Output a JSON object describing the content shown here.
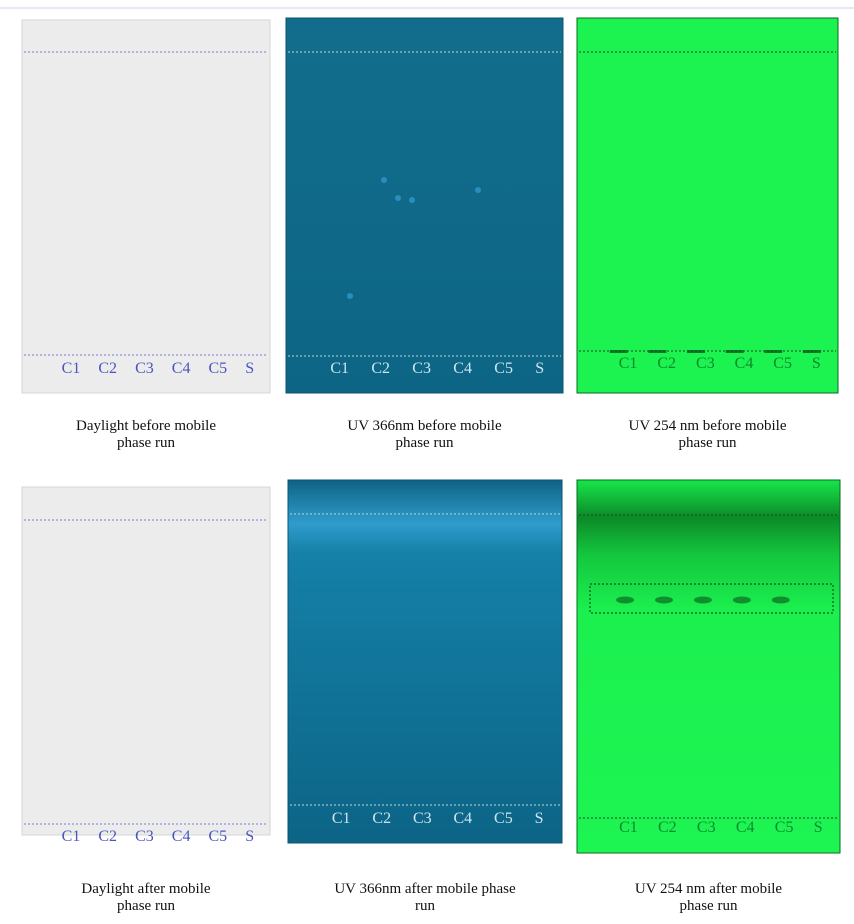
{
  "lanes": [
    "C1",
    "C2",
    "C3",
    "C4",
    "C5",
    "S"
  ],
  "panels": [
    {
      "caption": [
        "Daylight before mobile",
        "phase run"
      ]
    },
    {
      "caption": [
        "UV 366nm before mobile",
        "phase run"
      ]
    },
    {
      "caption": [
        "UV 254 nm before mobile",
        "phase run"
      ]
    },
    {
      "caption": [
        "Daylight after mobile",
        "phase run"
      ]
    },
    {
      "caption": [
        "UV 366nm after mobile phase",
        "run"
      ]
    },
    {
      "caption": [
        "UV 254 nm after mobile",
        "phase run"
      ]
    }
  ]
}
